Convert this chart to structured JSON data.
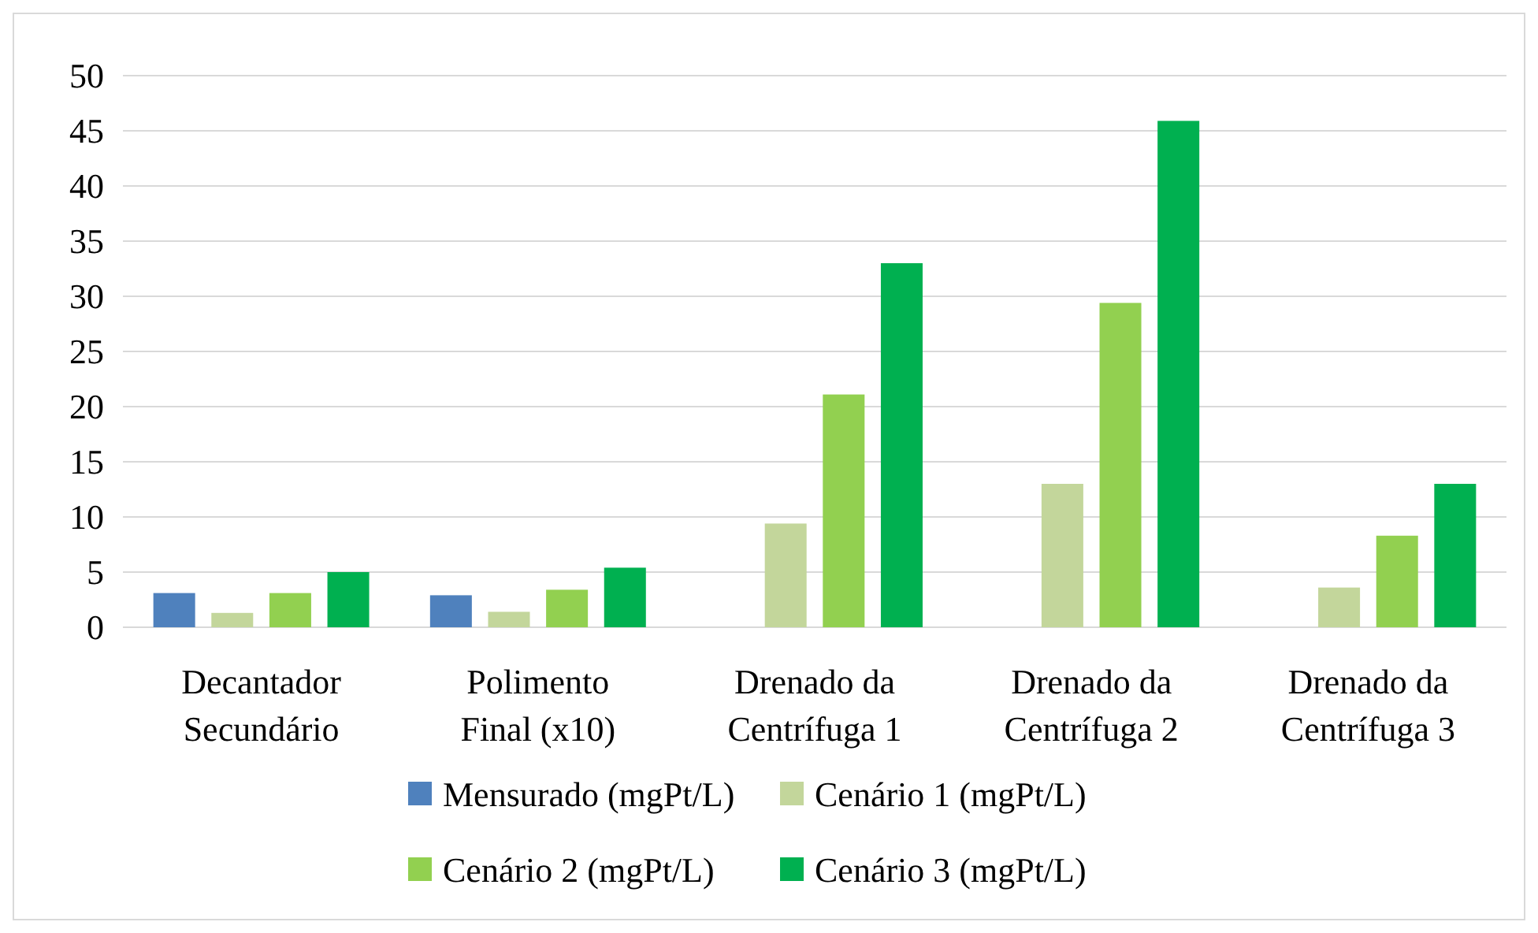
{
  "chart_data": {
    "type": "bar",
    "categories": [
      "Decantador Secundário",
      "Polimento Final (x10)",
      "Drenado da Centrífuga 1",
      "Drenado da Centrífuga 2",
      "Drenado da Centrífuga 3"
    ],
    "series": [
      {
        "name": "Mensurado (mgPt/L)",
        "color": "#4f81bd",
        "values": [
          3.1,
          2.9,
          null,
          null,
          null
        ]
      },
      {
        "name": "Cenário 1 (mgPt/L)",
        "color": "#c3d69b",
        "values": [
          1.3,
          1.4,
          9.4,
          13.0,
          3.6
        ]
      },
      {
        "name": "Cenário 2 (mgPt/L)",
        "color": "#92d050",
        "values": [
          3.1,
          3.4,
          21.1,
          29.4,
          8.3
        ]
      },
      {
        "name": "Cenário 3 (mgPt/L)",
        "color": "#00b050",
        "values": [
          5.0,
          5.4,
          33.0,
          45.9,
          13.0
        ]
      }
    ],
    "ylim": [
      0,
      50
    ],
    "yticks": [
      0,
      5,
      10,
      15,
      20,
      25,
      30,
      35,
      40,
      45,
      50
    ],
    "grid": "y",
    "legend": "bottom"
  }
}
